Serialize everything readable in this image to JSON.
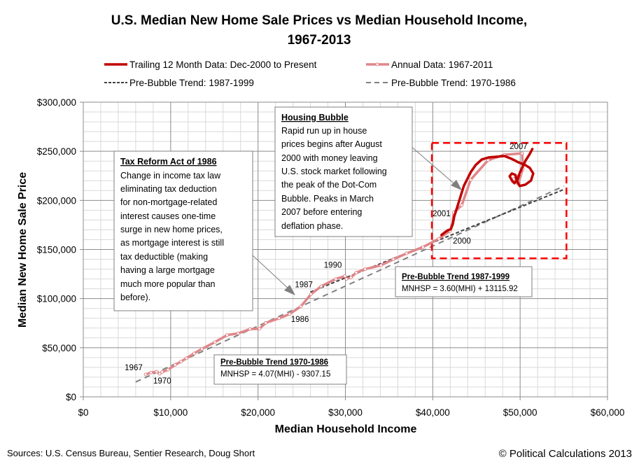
{
  "chart_data": {
    "type": "line",
    "title_lines": [
      "U.S. Median New Home Sale Prices vs Median Household Income,",
      "1967-2013"
    ],
    "xlabel": "Median Household Income",
    "ylabel": "Median New Home Sale Price",
    "xlim": [
      0,
      60000
    ],
    "ylim": [
      0,
      300000
    ],
    "x_major_step": 10000,
    "x_minor_step": 2000,
    "y_major_step": 50000,
    "y_minor_step": 10000,
    "grid": true,
    "legend_position": "top",
    "x_tick_labels": [
      "$0",
      "$10,000",
      "$20,000",
      "$30,000",
      "$40,000",
      "$50,000",
      "$60,000"
    ],
    "y_tick_labels": [
      "$0",
      "$50,000",
      "$100,000",
      "$150,000",
      "$200,000",
      "$250,000",
      "$300,000"
    ],
    "legend": [
      {
        "key": "trailing",
        "label": "Trailing 12 Month Data: Dec-2000 to Present",
        "color": "#c00000",
        "style": "solid-thick"
      },
      {
        "key": "annual",
        "label": "Annual Data: 1967-2011",
        "color": "#e0868a",
        "style": "solid-marker"
      },
      {
        "key": "trend8799",
        "label": "Pre-Bubble Trend: 1987-1999",
        "color": "#404040",
        "style": "dash-short"
      },
      {
        "key": "trend7086",
        "label": "Pre-Bubble Trend: 1970-1986",
        "color": "#808080",
        "style": "dash-long"
      }
    ],
    "series": [
      {
        "name": "Annual Data: 1967-2011",
        "color": "#e0868a",
        "years": [
          1967,
          1968,
          1969,
          1970,
          1971,
          1972,
          1973,
          1974,
          1975,
          1976,
          1977,
          1978,
          1979,
          1980,
          1981,
          1982,
          1983,
          1984,
          1985,
          1986,
          1987,
          1988,
          1989,
          1990,
          1991,
          1992,
          1993,
          1994,
          1995,
          1996,
          1997,
          1998,
          1999,
          2000,
          2001,
          2002,
          2003,
          2004,
          2005,
          2006,
          2007,
          2008,
          2009,
          2010,
          2011
        ],
        "x": [
          7143,
          7743,
          8389,
          8734,
          9028,
          9697,
          10512,
          11197,
          11800,
          12686,
          13572,
          15064,
          16461,
          17710,
          19074,
          20171,
          20885,
          22415,
          23618,
          24897,
          26061,
          27225,
          28906,
          29943,
          30126,
          30636,
          31241,
          32264,
          34076,
          35492,
          37005,
          38885,
          40696,
          41990,
          42228,
          42409,
          43318,
          44334,
          46326,
          48201,
          50233,
          50303,
          49777,
          49276,
          50054
        ],
        "y": [
          22700,
          24700,
          25600,
          23400,
          25200,
          27600,
          32500,
          35900,
          39300,
          44200,
          48800,
          55700,
          62900,
          64600,
          68900,
          69300,
          75300,
          79900,
          84300,
          92000,
          104500,
          112500,
          120000,
          122900,
          120000,
          121500,
          126500,
          130000,
          133900,
          140000,
          146000,
          152500,
          161000,
          169000,
          175200,
          187600,
          195000,
          221000,
          240900,
          246500,
          247900,
          232100,
          216700,
          221800,
          227200
        ]
      },
      {
        "name": "Trailing 12 Month Data: Dec-2000 to Present",
        "color": "#c00000",
        "x": [
          41000,
          41400,
          41750,
          42050,
          42300,
          42450,
          42700,
          42950,
          43250,
          43550,
          43950,
          44350,
          44900,
          45600,
          46400,
          47400,
          48200,
          49000,
          49800,
          50600,
          51100,
          51500,
          51250,
          50600,
          49950,
          49600,
          49450,
          49050,
          48800,
          49100,
          49350,
          49700,
          50000,
          50600,
          51100,
          51400
        ],
        "y": [
          164800,
          167600,
          169700,
          170500,
          176200,
          183300,
          190400,
          197500,
          206100,
          214600,
          221700,
          228800,
          235900,
          241600,
          243800,
          244500,
          245200,
          242400,
          238800,
          235900,
          233100,
          227400,
          220300,
          216000,
          214600,
          220300,
          226000,
          227400,
          224600,
          219600,
          217500,
          221100,
          228800,
          240200,
          247300,
          252300
        ]
      },
      {
        "name": "Pre-Bubble Trend: 1987-1999",
        "color": "#404040",
        "equation": "MNHSP = 3.60(MHI) + 13115.92",
        "slope": 3.6,
        "intercept": 13115.92,
        "x_range": [
          26000,
          55000
        ]
      },
      {
        "name": "Pre-Bubble Trend: 1970-1986",
        "color": "#808080",
        "equation": "MNHSP = 4.07(MHI) - 9307.15",
        "slope": 4.07,
        "intercept": -9307.15,
        "x_range": [
          6000,
          55000
        ]
      }
    ],
    "year_labels": [
      {
        "text": "1967",
        "x": 7143,
        "y": 22700
      },
      {
        "text": "1970",
        "x": 8734,
        "y": 23400
      },
      {
        "text": "1986",
        "x": 24897,
        "y": 92000
      },
      {
        "text": "1987",
        "x": 26061,
        "y": 104500
      },
      {
        "text": "1990",
        "x": 29943,
        "y": 122900
      },
      {
        "text": "2000",
        "x": 41990,
        "y": 169000
      },
      {
        "text": "2001",
        "x": 42228,
        "y": 175200
      },
      {
        "text": "2007",
        "x": 50233,
        "y": 247900
      }
    ],
    "highlight_box": {
      "x_range": [
        39900,
        55300
      ],
      "y_range": [
        141000,
        258500
      ],
      "color": "#ff0000"
    },
    "annotations": [
      {
        "key": "tax",
        "heading": "Tax Reform Act of 1986",
        "lines": [
          "Change in income tax law",
          "eliminating tax deduction",
          "for non-mortgage-related",
          "interest causes one-time",
          "surge in new home prices,",
          "as mortgage interest is still",
          "tax deductible (making",
          "having a large mortgage",
          "much more popular  than",
          "before)."
        ]
      },
      {
        "key": "bubble",
        "heading": "Housing Bubble",
        "lines": [
          "Rapid run up in house",
          "prices begins after August",
          "2000 with money leaving",
          "U.S. stock market following",
          "the peak of the Dot-Com",
          "Bubble.  Peaks in March",
          "2007 before entering",
          "deflation phase."
        ]
      },
      {
        "key": "trend8799",
        "heading": "Pre-Bubble Trend 1987-1999",
        "lines": [
          "MNHSP = 3.60(MHI) + 13115.92"
        ]
      },
      {
        "key": "trend7086",
        "heading": "Pre-Bubble Trend 1970-1986",
        "lines": [
          "MNHSP = 4.07(MHI) - 9307.15"
        ]
      }
    ],
    "sources": "Sources: U.S. Census Bureau, Sentier Research, Doug Short",
    "copyright": "© Political Calculations 2013"
  }
}
